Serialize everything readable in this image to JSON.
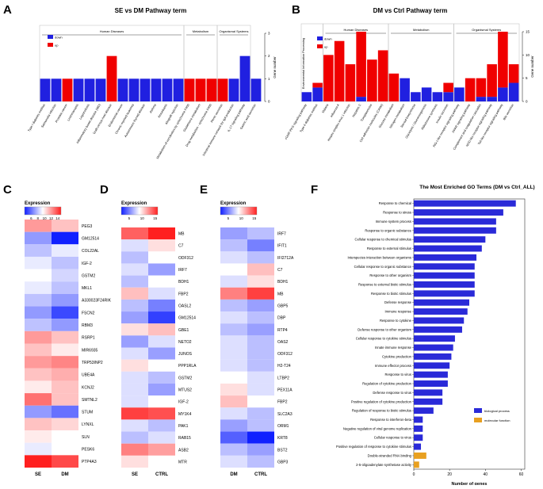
{
  "panel_letters": [
    "A",
    "B",
    "C",
    "D",
    "E",
    "F"
  ],
  "chart_data": [
    {
      "panel": "A",
      "type": "bar",
      "title": "SE vs DM Pathway term",
      "legend": [
        {
          "name": "down",
          "color": "#2020e0"
        },
        {
          "name": "up",
          "color": "#f00000"
        }
      ],
      "ylabel": "Gene number",
      "yticks": [
        0,
        1,
        2,
        3
      ],
      "ylim": [
        0,
        3
      ],
      "groups": [
        {
          "name": "Human Diseases",
          "start": 0,
          "end": 12
        },
        {
          "name": "Metabolism",
          "start": 13,
          "end": 15
        },
        {
          "name": "Organismal Systems",
          "start": 16,
          "end": 18
        }
      ],
      "categories": [
        "Type I diabetes mellitus",
        "Salmonella infection",
        "Prostate cancer",
        "Leishmaniasis",
        "Legionellosis",
        "Inflammatory bowel disease (IBD)",
        "Graft-versus-host disease",
        "Endometrial cancer",
        "Chronic myeloid leukemia",
        "Autoimmune thyroid disease",
        "Asthma",
        "Amoebiasis",
        "Allograft rejection",
        "Metabolism of xenobiotics by cytochrome P450",
        "Glutathione metabolism",
        "Drug metabolism - cytochrome P450",
        "Renin secretion",
        "Intestinal immune network for IgA production",
        "IL-17 signaling pathway",
        "Gastric acid secretion"
      ],
      "series": [
        {
          "name": "down",
          "values": [
            1,
            1,
            0,
            1,
            1,
            1,
            0,
            1,
            1,
            1,
            1,
            1,
            1,
            0,
            0,
            0,
            0,
            1,
            2,
            1
          ]
        },
        {
          "name": "up",
          "values": [
            0,
            0,
            1,
            0,
            0,
            0,
            2,
            0,
            0,
            0,
            0,
            0,
            0,
            1,
            1,
            1,
            1,
            0,
            0,
            0
          ]
        }
      ]
    },
    {
      "panel": "B",
      "type": "bar",
      "title": "DM vs Ctrl Pathway term",
      "legend": [
        {
          "name": "down",
          "color": "#2020e0"
        },
        {
          "name": "up",
          "color": "#f00000"
        }
      ],
      "ylabel": "Gene number",
      "yticks": [
        0,
        5,
        10,
        15
      ],
      "ylim": [
        0,
        15
      ],
      "groups": [
        {
          "name": "Environmental Information Processing",
          "start": 0,
          "end": 1
        },
        {
          "name": "Human Diseases",
          "start": 2,
          "end": 7
        },
        {
          "name": "Metabolism",
          "start": 8,
          "end": 13
        },
        {
          "name": "Organismal Systems",
          "start": 14,
          "end": 19
        }
      ],
      "categories": [
        "cGMP-PKG signaling pathway",
        "Type II diabetes mellitus",
        "Malaria",
        "Influenza A",
        "Herpes simplex virus 1 infection",
        "Hepatitis C",
        "Toxoplasmosis",
        "Cell adhesion molecules (CAMs)",
        "Glucose metabolism",
        "Nitrogen metabolism",
        "Steroid biosynthesis",
        "Glycolysis / Gluconeogenesis",
        "Aldosterone synthesis",
        "Insulin secretion",
        "RIG-I-like receptor signaling pathway",
        "PPAR signaling pathway",
        "Complement and coagulation cascades",
        "NOD-like receptor signaling pathway",
        "Toll-like receptor signaling pathway",
        "Bile secretion"
      ],
      "series": [
        {
          "name": "down",
          "values": [
            2,
            3,
            0,
            0,
            0,
            1,
            0,
            0,
            0,
            5,
            2,
            3,
            2,
            2,
            3,
            0,
            1,
            1,
            3,
            4
          ]
        },
        {
          "name": "up",
          "values": [
            0,
            1,
            10,
            13,
            8,
            14,
            9,
            11,
            6,
            0,
            0,
            0,
            0,
            2,
            0,
            5,
            4,
            7,
            12,
            4
          ]
        }
      ]
    },
    {
      "panel": "C",
      "type": "heatmap",
      "legend_title": "Expression",
      "scale_ticks": [
        6,
        8,
        10,
        12,
        14
      ],
      "range": [
        4,
        15
      ],
      "columns": [
        "SE",
        "DM"
      ],
      "rows": [
        "PEG3",
        "GM12514",
        "COL22AL",
        "IGF-2",
        "GSTM2",
        "MKL1",
        "A330023F24RIK",
        "FSCN2",
        "RBM3",
        "RSRP1",
        "MIR6935",
        "TRP53INP2",
        "UBE4A",
        "KCNJ2",
        "SMTNL2",
        "STUM",
        "LYNXL",
        "SLN",
        "PESK6",
        "PTP4A3"
      ],
      "values": [
        [
          12,
          11
        ],
        [
          7,
          4
        ],
        [
          8,
          9
        ],
        [
          9,
          8
        ],
        [
          9.5,
          8.5
        ],
        [
          9,
          8
        ],
        [
          8,
          7
        ],
        [
          7,
          5
        ],
        [
          8,
          7
        ],
        [
          12,
          11
        ],
        [
          11,
          10
        ],
        [
          12,
          12.5
        ],
        [
          11,
          11.5
        ],
        [
          10,
          11
        ],
        [
          13,
          11
        ],
        [
          7,
          6
        ],
        [
          11,
          10.5
        ],
        [
          10,
          9.5
        ],
        [
          9,
          9.5
        ],
        [
          15,
          14
        ]
      ]
    },
    {
      "panel": "D",
      "type": "heatmap",
      "legend_title": "Expression",
      "scale_ticks": [
        5,
        10,
        15
      ],
      "range": [
        2,
        16
      ],
      "columns": [
        "SE",
        "CTRL"
      ],
      "rows": [
        "MB",
        "C7",
        "ODF312",
        "IRF7",
        "BDH1",
        "FBP2",
        "OASL2",
        "GM12514",
        "GBE1",
        "NETO2",
        "JUNOS",
        "PPP1RLA",
        "GSTM2",
        "MTUS2",
        "IGF-2",
        "MY1K4",
        "PAK1",
        "RAB15",
        "ASB2",
        "MTR"
      ],
      "values": [
        [
          14,
          16
        ],
        [
          8,
          10
        ],
        [
          7,
          9
        ],
        [
          8,
          6
        ],
        [
          7,
          9
        ],
        [
          11,
          8
        ],
        [
          7,
          5
        ],
        [
          6,
          3
        ],
        [
          10,
          11
        ],
        [
          6,
          8
        ],
        [
          8,
          6
        ],
        [
          10,
          9
        ],
        [
          8,
          7
        ],
        [
          8,
          6
        ],
        [
          8,
          9
        ],
        [
          15,
          14.5
        ],
        [
          8,
          7
        ],
        [
          7,
          8
        ],
        [
          13,
          12
        ],
        [
          10,
          9
        ]
      ]
    },
    {
      "panel": "E",
      "type": "heatmap",
      "legend_title": "Expression",
      "scale_ticks": [
        5,
        10,
        15
      ],
      "range": [
        2,
        16
      ],
      "columns": [
        "DM",
        "CTRL"
      ],
      "rows": [
        "IRF7",
        "IFIT1",
        "IFI2712A",
        "C7",
        "BDH1",
        "MB",
        "GBP5",
        "DBP",
        "RTP4",
        "OAS2",
        "ODF312",
        "H2-T24",
        "LTBP2",
        "PEX11A",
        "FBP2",
        "SLC2A3",
        "ORM1",
        "KRT8",
        "BST2",
        "GBP3"
      ],
      "values": [
        [
          6,
          7
        ],
        [
          7,
          5
        ],
        [
          8,
          7
        ],
        [
          9,
          11
        ],
        [
          8,
          10
        ],
        [
          13,
          15
        ],
        [
          7,
          6
        ],
        [
          8,
          7
        ],
        [
          7,
          6
        ],
        [
          8,
          7
        ],
        [
          8,
          7
        ],
        [
          8,
          7
        ],
        [
          9,
          8
        ],
        [
          10,
          8
        ],
        [
          11,
          9
        ],
        [
          8,
          7
        ],
        [
          6,
          7
        ],
        [
          4,
          2
        ],
        [
          7,
          6
        ],
        [
          8,
          7
        ]
      ]
    },
    {
      "panel": "F",
      "type": "bar",
      "orientation": "horizontal",
      "title": "The Most Enriched GO Terms (DM vs Ctrl_ALL)",
      "xlabel": "Number of genes",
      "xticks": [
        0,
        20,
        40,
        60
      ],
      "xlim": [
        0,
        62
      ],
      "legend": [
        {
          "name": "biological process",
          "color": "#2a2ad8"
        },
        {
          "name": "molecular function",
          "color": "#e8a020"
        }
      ],
      "categories": [
        "Response to chemical",
        "Response to stress",
        "Immune system process",
        "Response to organic substance",
        "Cellular response to chemical stimulus",
        "Response to external stimulus",
        "Interspecies interaction between organisms",
        "Cellular response to organic substance",
        "Response to other organism",
        "Response to external biotic stimulus",
        "Response to biotic stimulus",
        "Defense response",
        "Immune response",
        "Response to cytokine",
        "Defense response to other organism",
        "Cellular response to cytokine stimulus",
        "Innate immune response",
        "Cytokine production",
        "Immune effector process",
        "Response to virus",
        "Regulation of cytokine production",
        "Defense response to virus",
        "Positive regulation of cytokine production",
        "Regulation of response to biotic stimulus",
        "Response to interferon-beta",
        "Negative regulation of viral genome replication",
        "Cellular response to virus",
        "Positive regulation of response to cytokine stimulus",
        "Double-stranded RNA binding",
        "2-5-oligoadenylate synthetase activity"
      ],
      "values": [
        57,
        50,
        46,
        46,
        40,
        38,
        35,
        34,
        34,
        34,
        34,
        31,
        30,
        28,
        27,
        23,
        22,
        21,
        20,
        19,
        19,
        16,
        16,
        11,
        5,
        5,
        5,
        4,
        7,
        3
      ],
      "types": [
        "bp",
        "bp",
        "bp",
        "bp",
        "bp",
        "bp",
        "bp",
        "bp",
        "bp",
        "bp",
        "bp",
        "bp",
        "bp",
        "bp",
        "bp",
        "bp",
        "bp",
        "bp",
        "bp",
        "bp",
        "bp",
        "bp",
        "bp",
        "bp",
        "bp",
        "bp",
        "bp",
        "bp",
        "mf",
        "mf"
      ]
    }
  ]
}
